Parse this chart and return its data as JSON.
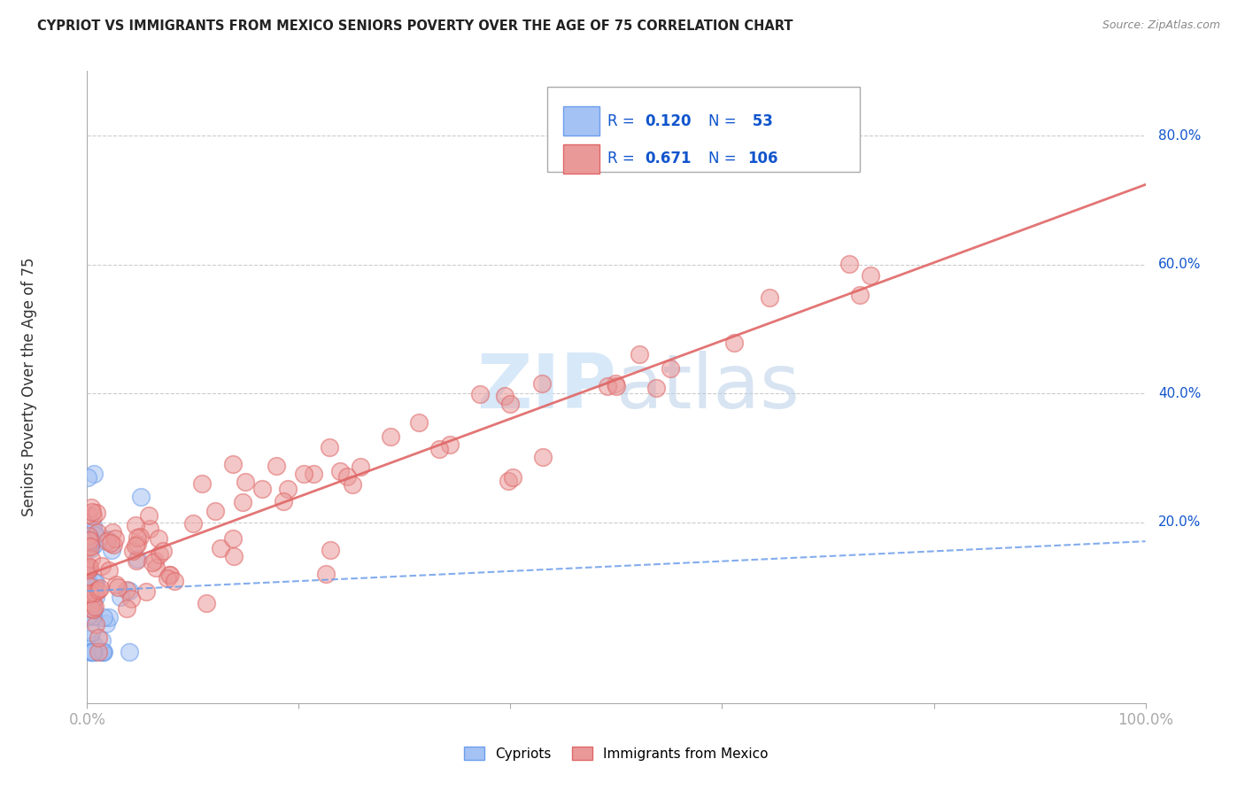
{
  "title": "CYPRIOT VS IMMIGRANTS FROM MEXICO SENIORS POVERTY OVER THE AGE OF 75 CORRELATION CHART",
  "source": "Source: ZipAtlas.com",
  "ylabel": "Seniors Poverty Over the Age of 75",
  "color_cypriot_fill": "#a4c2f4",
  "color_cypriot_edge": "#6d9eeb",
  "color_mexico_fill": "#ea9999",
  "color_mexico_edge": "#e06666",
  "color_line_cypriot": "#6d9eeb",
  "color_line_mexico": "#e06666",
  "color_text_blue": "#1155cc",
  "background_color": "#ffffff",
  "grid_color": "#cccccc",
  "watermark_color": "#d0e4f7",
  "legend_r1": "R = 0.120",
  "legend_n1": "N =  53",
  "legend_r2": "R = 0.671",
  "legend_n2": "N = 106"
}
